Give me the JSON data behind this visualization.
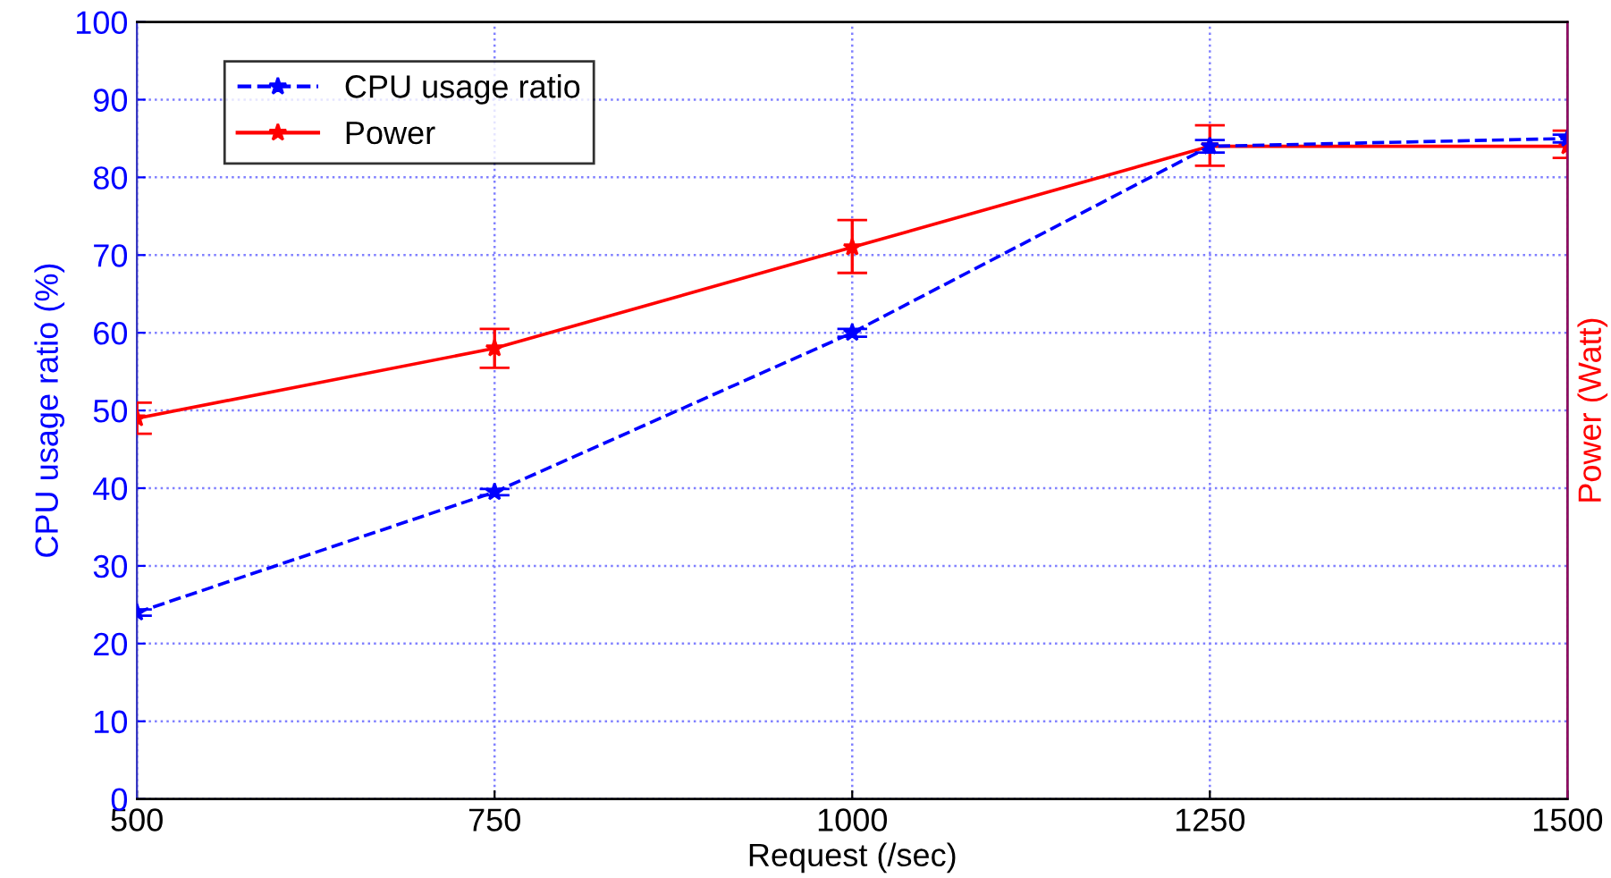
{
  "chart_data": {
    "type": "line",
    "xlabel": "Request (/sec)",
    "ylabel": "CPU usage ratio (%)",
    "y2label": "Power (Watt)",
    "x": [
      500,
      750,
      1000,
      1250,
      1500
    ],
    "series": [
      {
        "name": "CPU usage ratio",
        "color": "#0000ff",
        "line_style": "dashed",
        "marker": "star",
        "values": [
          24,
          39.5,
          60,
          84,
          85
        ],
        "errors": [
          0.4,
          0.4,
          0.5,
          0.8,
          0.5
        ]
      },
      {
        "name": "Power",
        "color": "#ff0000",
        "line_style": "solid",
        "marker": "star",
        "values": [
          49,
          58,
          71,
          84,
          84
        ],
        "errors": [
          [
            47,
            51
          ],
          [
            55.5,
            60.5
          ],
          [
            67.7,
            74.5
          ],
          [
            81.5,
            86.7
          ],
          [
            82.5,
            86
          ]
        ]
      }
    ],
    "xlim": [
      500,
      1500
    ],
    "xticks": [
      500,
      750,
      1000,
      1250,
      1500
    ],
    "ylim": [
      0,
      100
    ],
    "yticks": [
      0,
      10,
      20,
      30,
      40,
      50,
      60,
      70,
      80,
      90,
      100
    ],
    "grid": true,
    "legend": "top left"
  }
}
